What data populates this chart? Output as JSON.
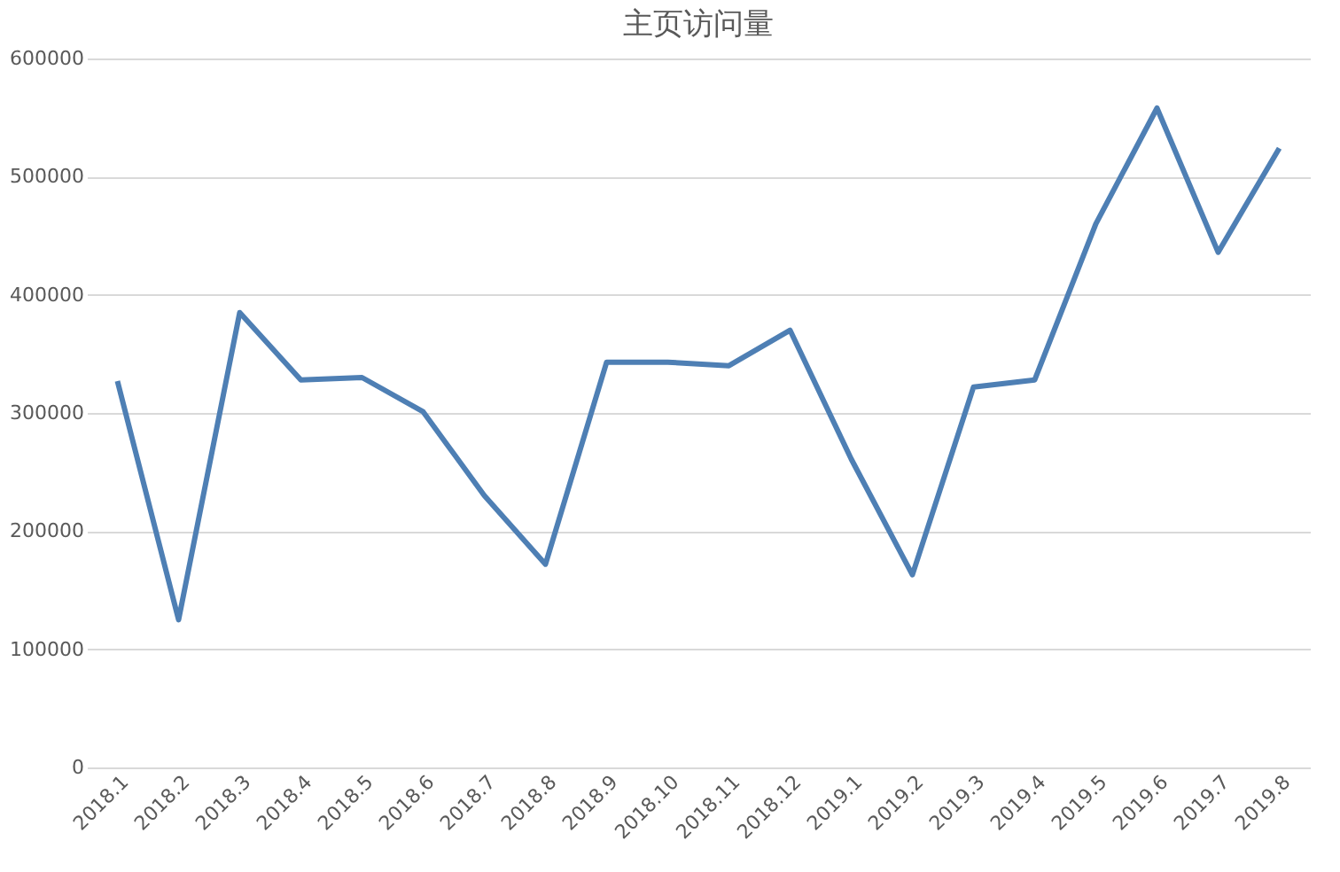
{
  "chart_data": {
    "type": "line",
    "title": "主页访问量",
    "categories": [
      "2018.1",
      "2018.2",
      "2018.3",
      "2018.4",
      "2018.5",
      "2018.6",
      "2018.7",
      "2018.8",
      "2018.9",
      "2018.10",
      "2018.11",
      "2018.12",
      "2019.1",
      "2019.2",
      "2019.3",
      "2019.4",
      "2019.5",
      "2019.6",
      "2019.7",
      "2019.8"
    ],
    "series": [
      {
        "color": "#4e7fb4",
        "values": [
          327000,
          125000,
          385000,
          328000,
          330000,
          301000,
          230000,
          172000,
          343000,
          343000,
          340000,
          370000,
          261000,
          163000,
          322000,
          328000,
          460000,
          558000,
          436000,
          524000
        ]
      }
    ],
    "ylim": [
      0,
      600000
    ],
    "yticks": [
      0,
      100000,
      200000,
      300000,
      400000,
      500000,
      600000
    ],
    "grid": "y",
    "marker": "none",
    "line_style": "solid"
  }
}
